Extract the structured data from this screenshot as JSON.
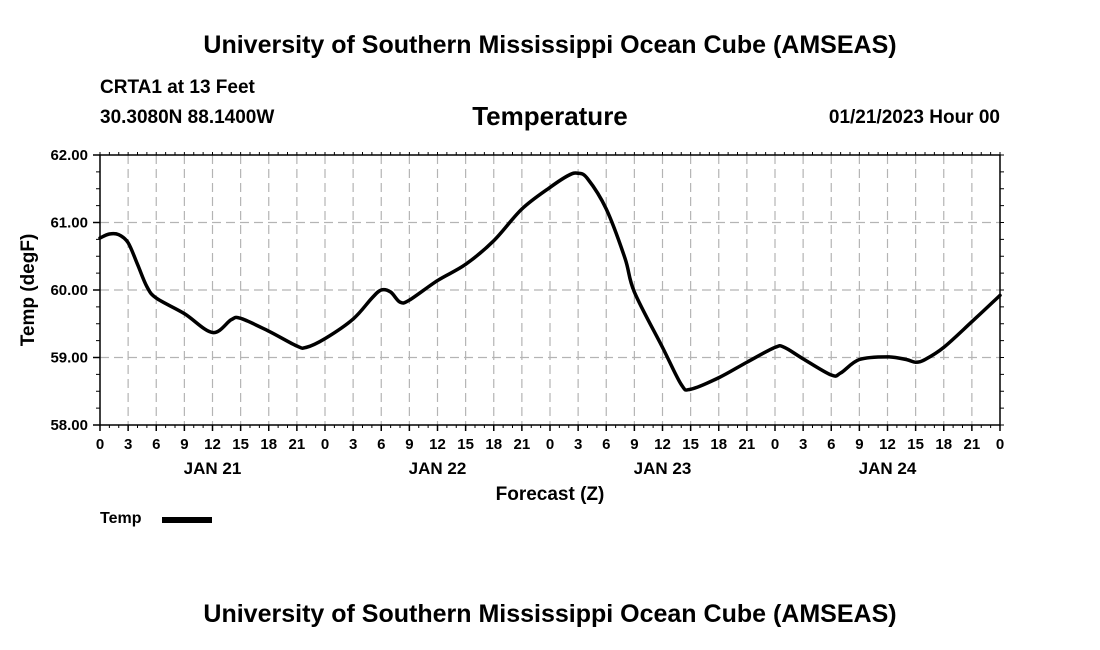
{
  "header": {
    "title": "University of Southern Mississippi Ocean Cube (AMSEAS)",
    "station": "CRTA1 at 13 Feet",
    "coords": "30.3080N  88.1400W",
    "datetime": "01/21/2023 Hour 00"
  },
  "footer": {
    "title": "University of Southern Mississippi Ocean Cube (AMSEAS)"
  },
  "legend": {
    "label": "Temp"
  },
  "chart_data": {
    "type": "line",
    "title": "Temperature",
    "xlabel": "Forecast (Z)",
    "ylabel": "Temp (degF)",
    "xlim": [
      0,
      96
    ],
    "ylim": [
      58.0,
      62.0
    ],
    "y_ticks": [
      "58.00",
      "59.00",
      "60.00",
      "61.00",
      "62.00"
    ],
    "x_ticks": [
      {
        "h": 0,
        "label": "0"
      },
      {
        "h": 3,
        "label": "3"
      },
      {
        "h": 6,
        "label": "6"
      },
      {
        "h": 9,
        "label": "9"
      },
      {
        "h": 12,
        "label": "12"
      },
      {
        "h": 15,
        "label": "15"
      },
      {
        "h": 18,
        "label": "18"
      },
      {
        "h": 21,
        "label": "21"
      },
      {
        "h": 24,
        "label": "0"
      },
      {
        "h": 27,
        "label": "3"
      },
      {
        "h": 30,
        "label": "6"
      },
      {
        "h": 33,
        "label": "9"
      },
      {
        "h": 36,
        "label": "12"
      },
      {
        "h": 39,
        "label": "15"
      },
      {
        "h": 42,
        "label": "18"
      },
      {
        "h": 45,
        "label": "21"
      },
      {
        "h": 48,
        "label": "0"
      },
      {
        "h": 51,
        "label": "3"
      },
      {
        "h": 54,
        "label": "6"
      },
      {
        "h": 57,
        "label": "9"
      },
      {
        "h": 60,
        "label": "12"
      },
      {
        "h": 63,
        "label": "15"
      },
      {
        "h": 66,
        "label": "18"
      },
      {
        "h": 69,
        "label": "21"
      },
      {
        "h": 72,
        "label": "0"
      },
      {
        "h": 75,
        "label": "3"
      },
      {
        "h": 78,
        "label": "6"
      },
      {
        "h": 81,
        "label": "9"
      },
      {
        "h": 84,
        "label": "12"
      },
      {
        "h": 87,
        "label": "15"
      },
      {
        "h": 90,
        "label": "18"
      },
      {
        "h": 93,
        "label": "21"
      },
      {
        "h": 96,
        "label": "0"
      }
    ],
    "day_labels": [
      {
        "h": 12,
        "label": "JAN 21"
      },
      {
        "h": 36,
        "label": "JAN 22"
      },
      {
        "h": 60,
        "label": "JAN 23"
      },
      {
        "h": 84,
        "label": "JAN 24"
      }
    ],
    "series": [
      {
        "name": "Temp",
        "x": [
          0,
          1,
          2,
          3,
          4,
          5,
          6,
          9,
          12,
          14,
          15,
          18,
          21,
          22,
          24,
          27,
          29,
          30,
          31,
          32,
          33,
          36,
          39,
          42,
          45,
          48,
          50,
          51,
          52,
          54,
          56,
          57,
          60,
          62,
          63,
          66,
          69,
          72,
          73,
          75,
          78,
          79,
          81,
          84,
          86,
          87,
          88,
          90,
          93,
          96
        ],
        "values": [
          60.77,
          60.83,
          60.82,
          60.7,
          60.38,
          60.05,
          59.88,
          59.65,
          59.37,
          59.56,
          59.58,
          59.39,
          59.17,
          59.15,
          59.28,
          59.57,
          59.88,
          60.0,
          59.97,
          59.82,
          59.85,
          60.14,
          60.38,
          60.73,
          61.2,
          61.52,
          61.7,
          61.73,
          61.65,
          61.2,
          60.47,
          59.97,
          59.15,
          58.6,
          58.53,
          58.7,
          58.93,
          59.15,
          59.15,
          58.98,
          58.74,
          58.77,
          58.97,
          59.01,
          58.97,
          58.93,
          58.97,
          59.15,
          59.53,
          59.92
        ]
      }
    ]
  }
}
